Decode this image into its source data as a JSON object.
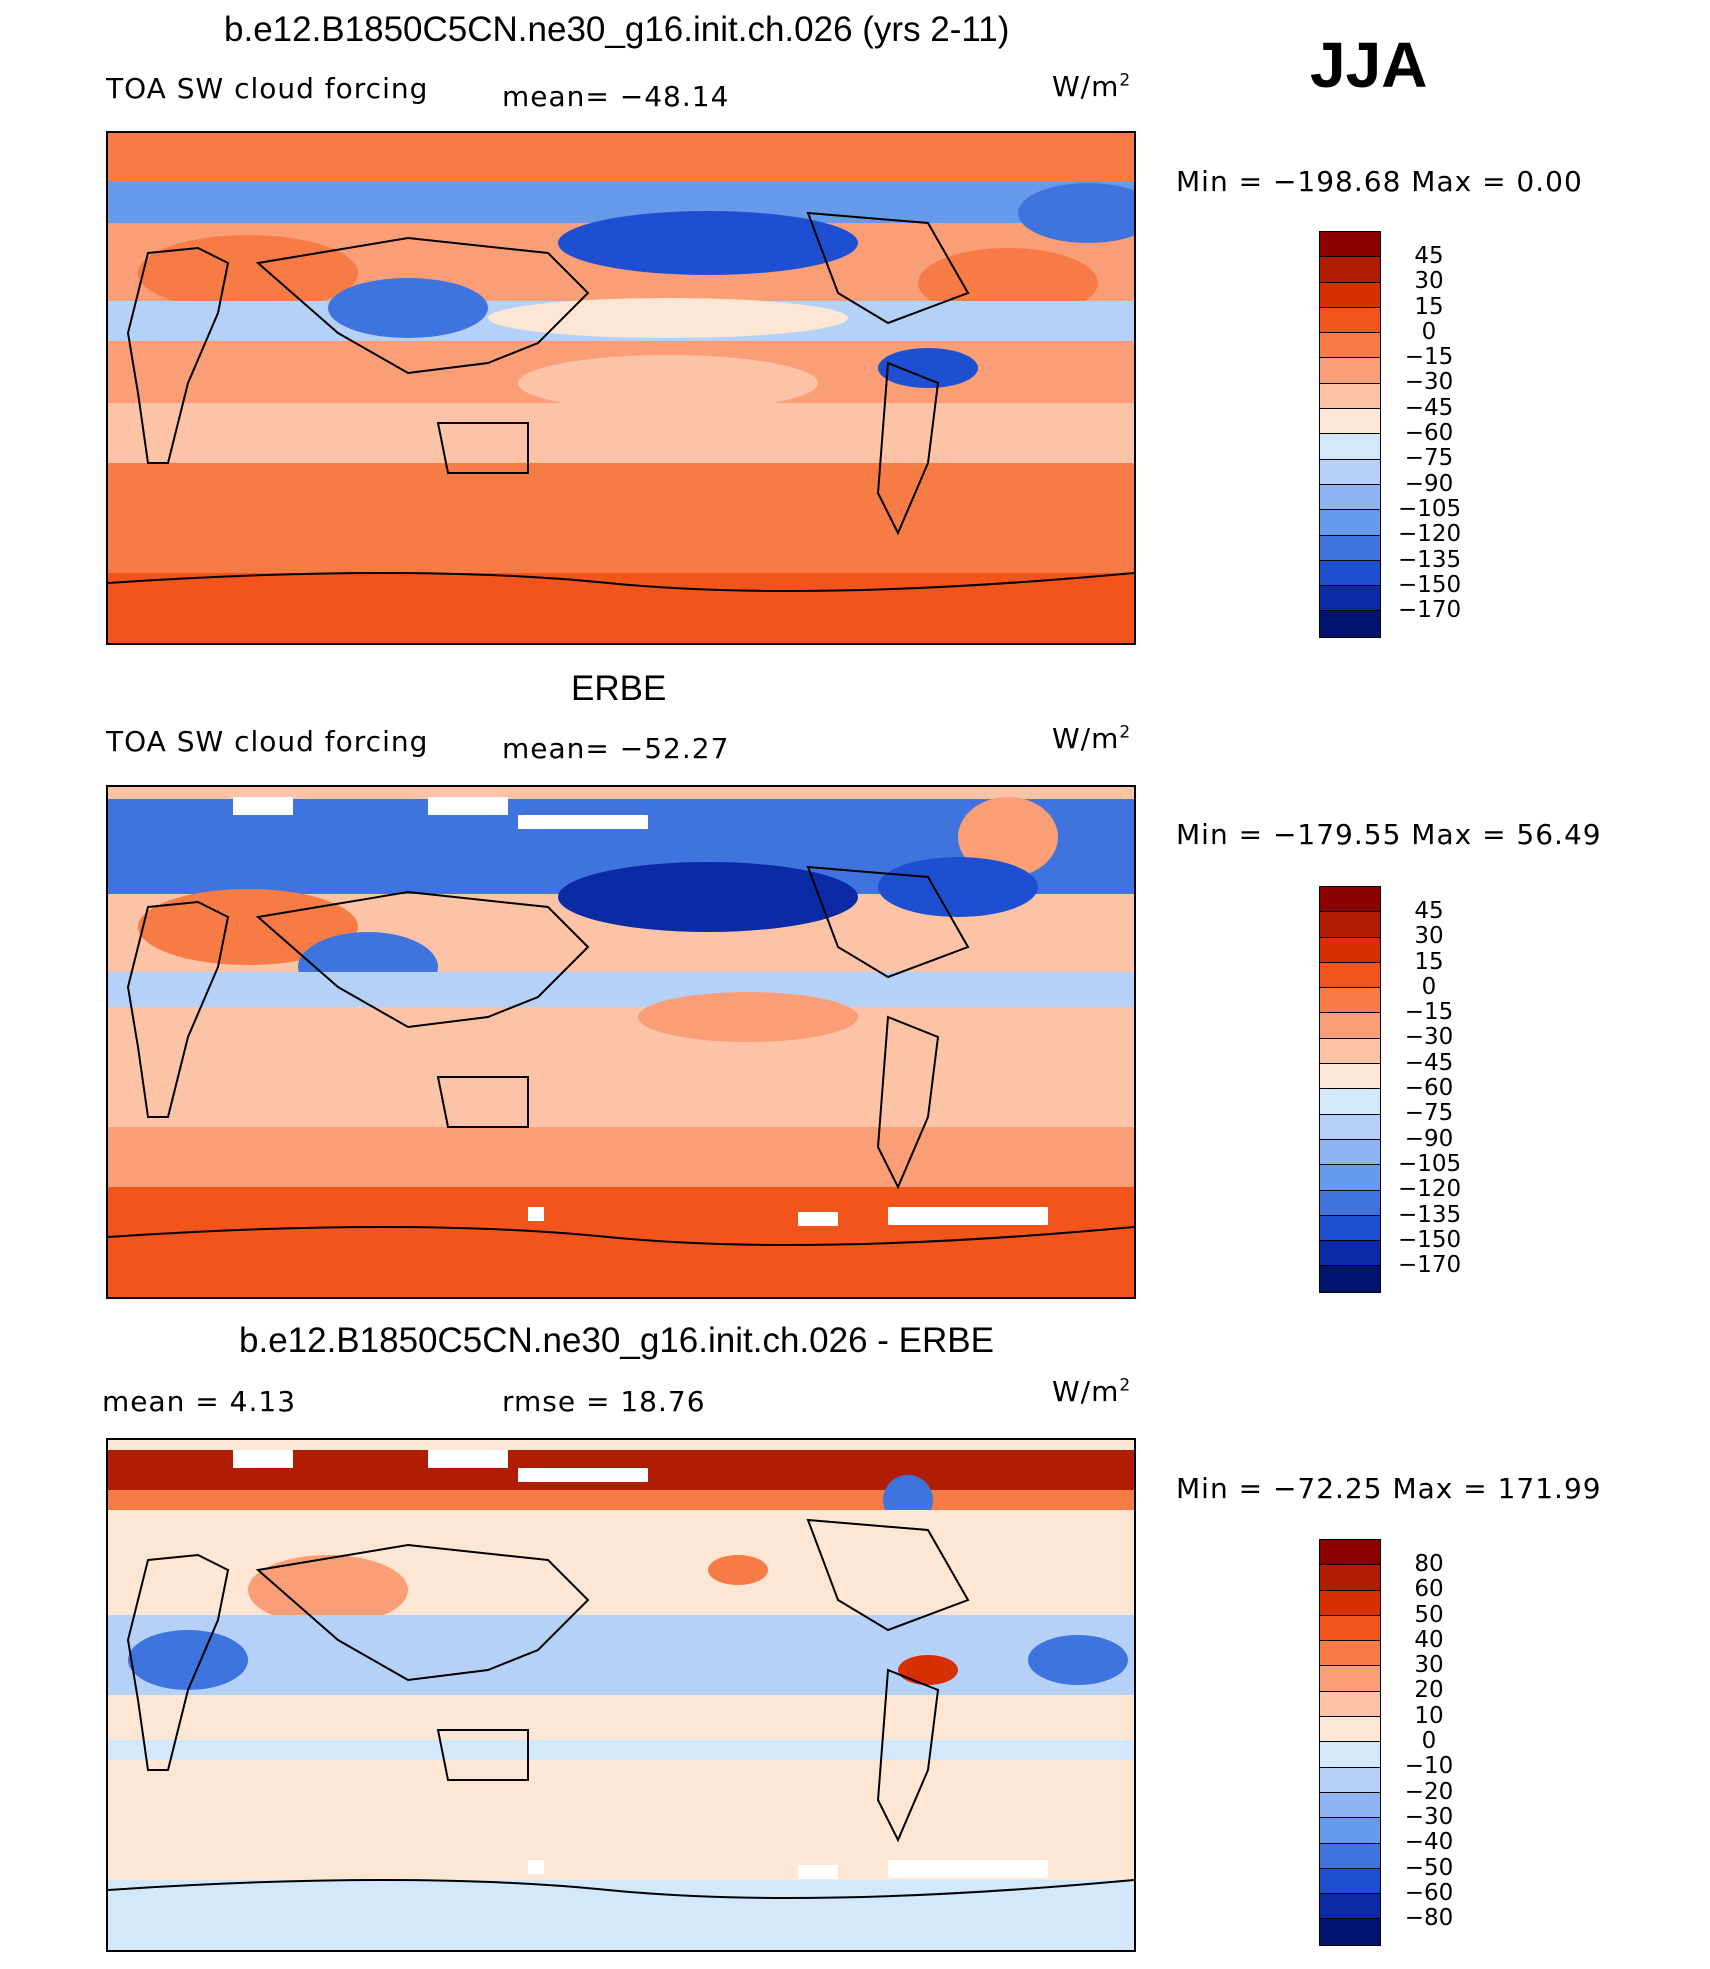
{
  "season": "JJA",
  "units": "W/m",
  "units_sup": "2",
  "panels": [
    {
      "title": "b.e12.B1850C5CN.ne30_g16.init.ch.026 (yrs 2-11)",
      "left_label": "TOA SW cloud forcing",
      "stat": "mean= −48.14",
      "minmax": "Min  =  −198.68  Max  =     0.00",
      "colorbar": {
        "levels": [
          "45",
          "30",
          "15",
          "0",
          "−15",
          "−30",
          "−45",
          "−60",
          "−75",
          "−90",
          "−105",
          "−120",
          "−135",
          "−150",
          "−170"
        ],
        "colors": [
          "#8b0000",
          "#b11d00",
          "#d73000",
          "#f2541c",
          "#f77b45",
          "#f99e76",
          "#fcc3a6",
          "#fde6d4",
          "#d4e8fb",
          "#b5d1f7",
          "#8eb5f2",
          "#679aeb",
          "#3f74df",
          "#1e4fd1",
          "#0a2aa6",
          "#00136e"
        ]
      },
      "regions": [
        {
          "name": "model-polar-north-band",
          "color": "#f77b45"
        },
        {
          "name": "model-storm-track-north",
          "color": "#679aeb"
        },
        {
          "name": "model-north-pacific-cloud",
          "color": "#1e4fd1"
        },
        {
          "name": "model-sahara-region",
          "color": "#f77b45"
        },
        {
          "name": "model-itcz-band",
          "color": "#b5d1f7"
        },
        {
          "name": "model-subtropical-south",
          "color": "#fcc3a6"
        },
        {
          "name": "model-southern-ocean-band",
          "color": "#f77b45"
        },
        {
          "name": "model-antarctic-band",
          "color": "#f2541c"
        }
      ]
    },
    {
      "title": "ERBE",
      "left_label": "TOA SW cloud forcing",
      "stat": "mean= −52.27",
      "minmax": "Min  =  −179.55  Max  =   56.49",
      "colorbar": {
        "levels": [
          "45",
          "30",
          "15",
          "0",
          "−15",
          "−30",
          "−45",
          "−60",
          "−75",
          "−90",
          "−105",
          "−120",
          "−135",
          "−150",
          "−170"
        ],
        "colors": [
          "#8b0000",
          "#b11d00",
          "#d73000",
          "#f2541c",
          "#f77b45",
          "#f99e76",
          "#fcc3a6",
          "#fde6d4",
          "#d4e8fb",
          "#b5d1f7",
          "#8eb5f2",
          "#679aeb",
          "#3f74df",
          "#1e4fd1",
          "#0a2aa6",
          "#00136e"
        ]
      },
      "regions": [
        {
          "name": "obs-arctic-cloud",
          "color": "#3f74df"
        },
        {
          "name": "obs-north-pacific-cloud",
          "color": "#0a2aa6"
        },
        {
          "name": "obs-monsoon-cloud",
          "color": "#3f74df"
        },
        {
          "name": "obs-tropics",
          "color": "#fcc3a6"
        },
        {
          "name": "obs-southern-ocean-band",
          "color": "#f2541c"
        },
        {
          "name": "obs-missing-data",
          "color": "#ffffff"
        }
      ]
    },
    {
      "title": "b.e12.B1850C5CN.ne30_g16.init.ch.026 - ERBE",
      "left_label": "mean =     4.13",
      "stat": "rmse =    18.76",
      "minmax": "Min  =  −72.25  Max  =  171.99",
      "colorbar": {
        "levels": [
          "80",
          "60",
          "50",
          "40",
          "30",
          "20",
          "10",
          "0",
          "−10",
          "−20",
          "−30",
          "−40",
          "−50",
          "−60",
          "−80"
        ],
        "colors": [
          "#8b0000",
          "#b11d00",
          "#d73000",
          "#f2541c",
          "#f77b45",
          "#f99e76",
          "#fcc3a6",
          "#fde6d4",
          "#d4e8fb",
          "#b5d1f7",
          "#8eb5f2",
          "#679aeb",
          "#3f74df",
          "#1e4fd1",
          "#0a2aa6",
          "#00136e"
        ]
      },
      "regions": [
        {
          "name": "diff-arctic-positive",
          "color": "#b11d00"
        },
        {
          "name": "diff-midlatitudes",
          "color": "#fde6d4"
        },
        {
          "name": "diff-tropical-negative",
          "color": "#b5d1f7"
        },
        {
          "name": "diff-southern-neutral",
          "color": "#fde6d4"
        },
        {
          "name": "diff-missing-data",
          "color": "#ffffff"
        }
      ]
    }
  ]
}
